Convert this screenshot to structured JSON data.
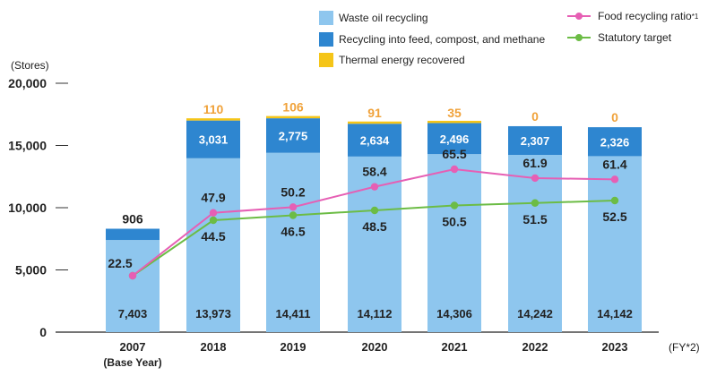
{
  "chart_data": {
    "type": "bar",
    "stacked": true,
    "ylabel": "(Stores)",
    "xlabel": "(FY*2)",
    "ylim": [
      0,
      20000
    ],
    "yticks": [
      0,
      5000,
      10000,
      15000,
      20000
    ],
    "ytick_labels": [
      "0",
      "5,000",
      "10,000",
      "15,000",
      "20,000"
    ],
    "categories": [
      "2007",
      "2018",
      "2019",
      "2020",
      "2021",
      "2022",
      "2023"
    ],
    "category_sublabels": [
      "(Base Year)",
      "",
      "",
      "",
      "",
      "",
      ""
    ],
    "series": [
      {
        "name": "Waste oil recycling",
        "color": "#8ec6ee",
        "values": [
          7403,
          13973,
          14411,
          14112,
          14306,
          14242,
          14142
        ],
        "labels": [
          "7,403",
          "13,973",
          "14,411",
          "14,112",
          "14,306",
          "14,242",
          "14,142"
        ]
      },
      {
        "name": "Recycling into feed, compost, and methane",
        "color": "#2e86d0",
        "values": [
          906,
          3031,
          2775,
          2634,
          2496,
          2307,
          2326
        ],
        "labels": [
          "906",
          "3,031",
          "2,775",
          "2,634",
          "2,496",
          "2,307",
          "2,326"
        ]
      },
      {
        "name": "Thermal energy recovered",
        "color": "#f5c518",
        "values": [
          0,
          110,
          106,
          91,
          35,
          0,
          0
        ],
        "labels": [
          "",
          "110",
          "106",
          "91",
          "35",
          "0",
          "0"
        ]
      }
    ],
    "lines": [
      {
        "name": "Food recycling ratio",
        "superscript": "*1",
        "color": "#e65fb4",
        "values": [
          22.5,
          47.9,
          50.2,
          58.4,
          65.5,
          61.9,
          61.4
        ],
        "labels": [
          "22.5",
          "47.9",
          "50.2",
          "58.4",
          "65.5",
          "61.9",
          "61.4"
        ]
      },
      {
        "name": "Statutory target",
        "color": "#6cbc45",
        "values": [
          22.5,
          44.5,
          46.5,
          48.5,
          50.5,
          51.5,
          52.5
        ],
        "labels": [
          "",
          "44.5",
          "46.5",
          "48.5",
          "50.5",
          "51.5",
          "52.5"
        ]
      }
    ]
  },
  "colors": {
    "top_label": "#f0a23a",
    "bar_label_dark": "#222222",
    "bar_label_light": "#ffffff",
    "axis": "#222222"
  }
}
